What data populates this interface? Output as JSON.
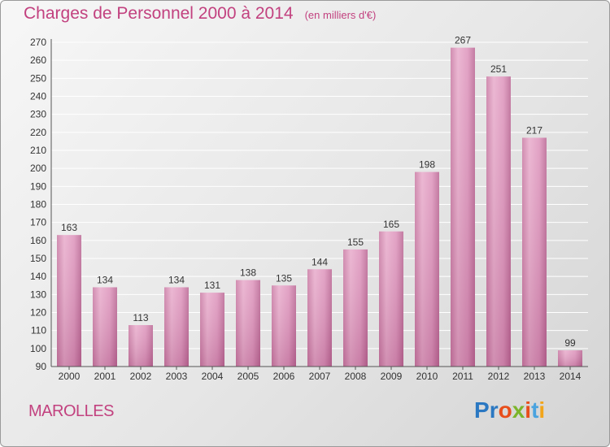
{
  "title": "Charges de Personnel 2000 à 2014",
  "unit": "(en milliers d'€)",
  "city": "MAROLLES",
  "logo": {
    "letters": [
      "P",
      "r",
      "o",
      "x",
      "i",
      "t",
      "i"
    ],
    "colors": [
      "#2b78c2",
      "#2b78c2",
      "#e84e1b",
      "#7cb52b",
      "#e84e1b",
      "#4aa3df",
      "#f2a51a"
    ]
  },
  "colors": {
    "bar": "#d98ab4",
    "text": "#c2417f"
  },
  "chart_data": {
    "type": "bar",
    "title": "Charges de Personnel 2000 à 2014",
    "subtitle": "(en milliers d'€)",
    "categories": [
      "2000",
      "2001",
      "2002",
      "2003",
      "2004",
      "2005",
      "2006",
      "2007",
      "2008",
      "2009",
      "2010",
      "2011",
      "2012",
      "2013",
      "2014"
    ],
    "values": [
      163,
      134,
      113,
      134,
      131,
      138,
      135,
      144,
      155,
      165,
      198,
      267,
      251,
      217,
      99
    ],
    "ylim": [
      90,
      270
    ],
    "yticks": [
      90,
      100,
      110,
      120,
      130,
      140,
      150,
      160,
      170,
      180,
      190,
      200,
      210,
      220,
      230,
      240,
      250,
      260,
      270
    ],
    "grid": true,
    "xlabel": "",
    "ylabel": ""
  }
}
